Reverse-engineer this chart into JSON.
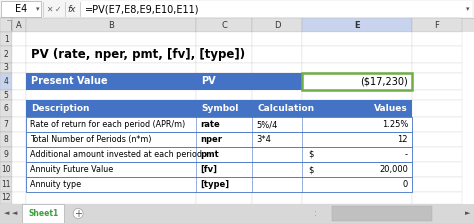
{
  "formula_bar_cell": "E4",
  "formula_bar_formula": "=PV(E7,E8,E9,E10,E11)",
  "title": "PV (rate, nper, pmt, [fv], [type])",
  "header_bg": "#4472C4",
  "header_text_color": "#FFFFFF",
  "table_border_color": "#4472C4",
  "selected_cell_border": "#70AD47",
  "col_header_bg": "#E0E0E0",
  "col_header_selected_bg": "#C8D4ED",
  "row_header_selected_bg": "#C8D4ED",
  "row4": {
    "desc": "Present Value",
    "col_c": "PV",
    "col_e": "($17,230)"
  },
  "row6": {
    "desc": "Description",
    "col_c": "Symbol",
    "col_d": "Calculation",
    "col_e": "Values"
  },
  "row7": {
    "desc": "Rate of return for each period (APR/m)",
    "col_c": "rate",
    "col_d": "5%/4",
    "col_e": "1.25%"
  },
  "row8": {
    "desc": "Total Number of Periods (n*m)",
    "col_c": "nper",
    "col_d": "3*4",
    "col_e": "12"
  },
  "row9": {
    "desc": "Additional amount invested at each period",
    "col_c": "pmt",
    "col_d": "",
    "col_e_dollar": "$",
    "col_e_val": "-"
  },
  "row10": {
    "desc": "Annuity Future Value",
    "col_c": "[fv]",
    "col_d": "",
    "col_e_dollar": "$",
    "col_e_val": "20,000"
  },
  "row11": {
    "desc": "Annuity type",
    "col_c": "[type]",
    "col_d": "",
    "col_e": "0"
  },
  "sheet_tab": "Sheet1",
  "bg_color": "#F0F0F0",
  "grid_color": "#C8C8C8",
  "formula_bar_bg": "#F5F5F5",
  "col_header_border": "#B0B0B0"
}
